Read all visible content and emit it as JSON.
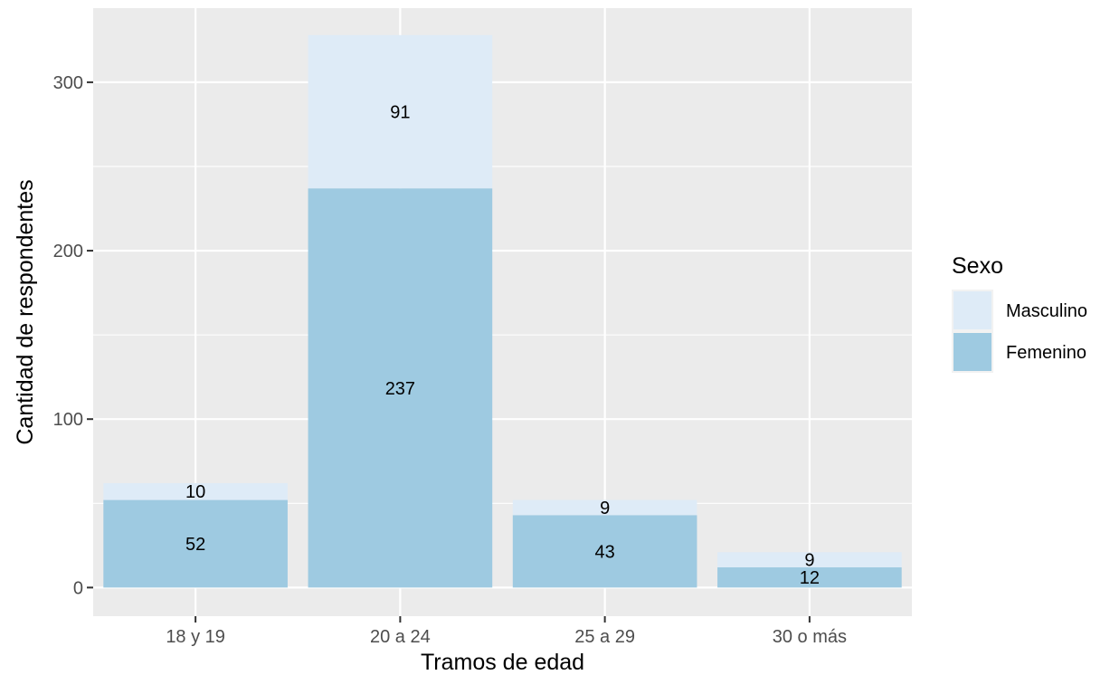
{
  "chart_data": {
    "type": "bar",
    "stacked": true,
    "categories": [
      "18 y 19",
      "20 a 24",
      "25 a 29",
      "30 o más"
    ],
    "series": [
      {
        "name": "Femenino",
        "values": [
          52,
          237,
          43,
          12
        ],
        "color": "#9ecae1"
      },
      {
        "name": "Masculino",
        "values": [
          10,
          91,
          9,
          9
        ],
        "color": "#deebf7"
      }
    ],
    "xlabel": "Tramos de edad",
    "ylabel": "Cantidad de respondentes",
    "ylim": [
      -17,
      344
    ],
    "yticks": [
      0,
      100,
      200,
      300
    ],
    "grid": true,
    "panel_background": "#ebebeb",
    "legend": {
      "title": "Sexo",
      "position": "right",
      "order": [
        "Masculino",
        "Femenino"
      ]
    }
  }
}
